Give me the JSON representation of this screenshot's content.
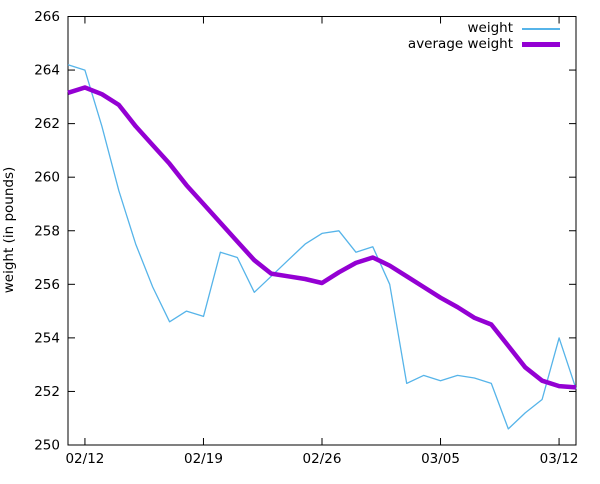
{
  "window": {
    "background": "#ffffff",
    "border_color": "#000000"
  },
  "chart_data": {
    "type": "line",
    "title": "",
    "xlabel": "",
    "ylabel": "weight (in pounds)",
    "ylim": [
      250,
      266
    ],
    "y_tick_step": 2,
    "y_tick_labels": [
      "250",
      "252",
      "254",
      "256",
      "258",
      "260",
      "262",
      "264",
      "266"
    ],
    "x_tick_labels": [
      "02/12",
      "02/19",
      "02/26",
      "03/05",
      "03/12"
    ],
    "x_tick_day_indices": [
      1,
      8,
      15,
      22,
      29
    ],
    "x_day_span": 30,
    "grid": false,
    "legend_position": "top-right-inside",
    "series": [
      {
        "name": "weight",
        "color": "#56b4e9",
        "width": 1.3,
        "values": [
          264.2,
          264.0,
          261.9,
          259.5,
          257.5,
          255.9,
          254.6,
          255.0,
          254.8,
          257.2,
          257.0,
          255.7,
          256.3,
          256.9,
          257.5,
          257.9,
          258.0,
          257.2,
          257.4,
          256.0,
          252.3,
          252.6,
          252.4,
          252.6,
          252.5,
          252.3,
          250.6,
          251.2,
          251.7,
          254.0,
          252.1
        ]
      },
      {
        "name": "average weight",
        "color": "#9400d3",
        "width": 4.5,
        "values": [
          263.15,
          263.35,
          263.1,
          262.7,
          261.9,
          261.2,
          260.5,
          259.7,
          259.0,
          258.3,
          257.6,
          256.9,
          256.4,
          256.3,
          256.2,
          256.05,
          256.45,
          256.8,
          257.0,
          256.7,
          256.3,
          255.9,
          255.5,
          255.15,
          254.75,
          254.5,
          253.7,
          252.9,
          252.4,
          252.2,
          252.15
        ]
      }
    ]
  }
}
